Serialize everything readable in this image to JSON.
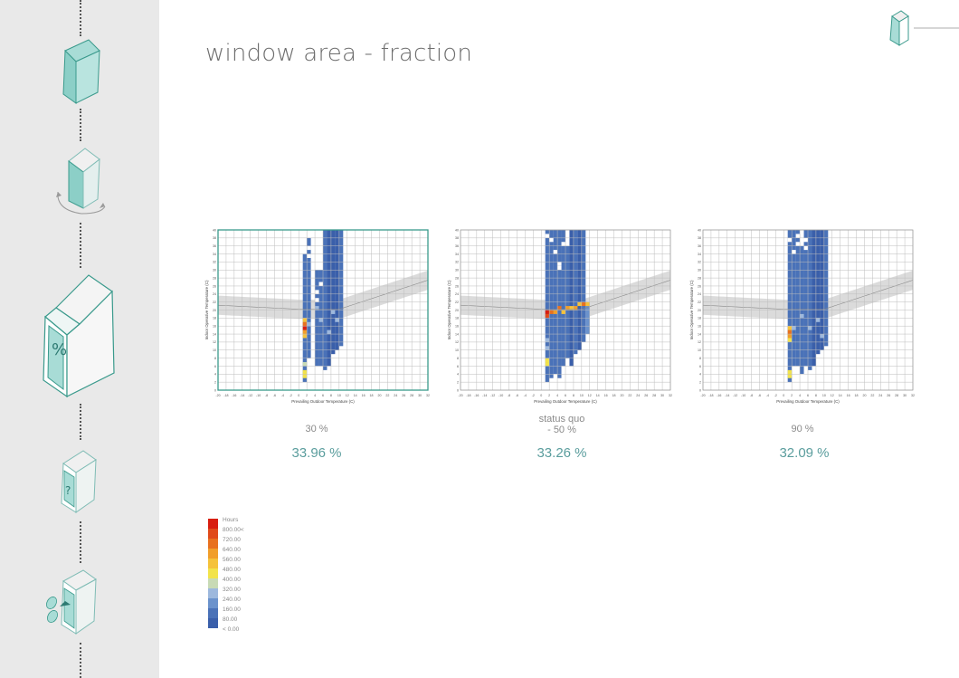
{
  "page": {
    "title": "window area - fraction"
  },
  "sidebar": {
    "icons": [
      {
        "name": "building-block-icon",
        "interactable": true
      },
      {
        "name": "building-rotate-icon",
        "interactable": true
      },
      {
        "name": "window-percent-icon",
        "label": "%",
        "interactable": true,
        "active": true
      },
      {
        "name": "window-question-icon",
        "label": "?",
        "interactable": true
      },
      {
        "name": "window-shading-icon",
        "interactable": true
      }
    ]
  },
  "header": {
    "corner_icon": "building-small-icon"
  },
  "colors": {
    "accent": "#5a9d9d",
    "frame_active": "#3a9a8c",
    "comfort_band": "#cfcfcf",
    "scale": [
      "#3a5faa",
      "#4a72b8",
      "#6b92cc",
      "#9db8dd",
      "#c8dab5",
      "#f2e34a",
      "#f5c23a",
      "#f19e2a",
      "#e8711f",
      "#e04a1a",
      "#d81e10"
    ]
  },
  "legend": {
    "title": "Hours",
    "labels": [
      "800.00<",
      "720.00",
      "640.00",
      "560.00",
      "480.00",
      "400.00",
      "320.00",
      "240.00",
      "160.00",
      "80.00",
      "< 0.00"
    ]
  },
  "chart_data": [
    {
      "type": "heatmap",
      "title": "",
      "xlabel": "Prevailing Outdoor Temperature (C)",
      "ylabel": "Indoor Operative Temperature (C)",
      "xlim": [
        -20,
        32
      ],
      "ylim": [
        0,
        40
      ],
      "x_ticks": [
        "-20",
        "-18",
        "-16",
        "-14",
        "-12",
        "-10",
        "-8",
        "-6",
        "-4",
        "-2",
        "0",
        "2",
        "4",
        "6",
        "8",
        "10",
        "12",
        "14",
        "16",
        "18",
        "20",
        "22",
        "24",
        "26",
        "28",
        "30",
        "32"
      ],
      "y_ticks": [
        "0",
        "2",
        "4",
        "6",
        "8",
        "10",
        "12",
        "14",
        "16",
        "18",
        "20",
        "22",
        "24",
        "26",
        "28",
        "30",
        "32",
        "34",
        "36",
        "38",
        "40"
      ],
      "caption": "30 %",
      "caption_prefix": "",
      "result": "33.96 %",
      "active": true,
      "columns": [
        {
          "x": 1.5,
          "y0": 2,
          "y1": 34,
          "level": 1
        },
        {
          "x": 2.5,
          "y0": 8,
          "y1": 38,
          "level": 1
        },
        {
          "x": 4.5,
          "y0": 6,
          "y1": 30,
          "level": 1
        },
        {
          "x": 5.5,
          "y0": 6,
          "y1": 30,
          "level": 1
        },
        {
          "x": 6.5,
          "y0": 5,
          "y1": 40,
          "level": 1
        },
        {
          "x": 7.5,
          "y0": 6,
          "y1": 40,
          "level": 0
        },
        {
          "x": 8.5,
          "y0": 9,
          "y1": 40,
          "level": 0
        },
        {
          "x": 9.5,
          "y0": 10,
          "y1": 40,
          "level": 0
        },
        {
          "x": 10.5,
          "y0": 11,
          "y1": 40,
          "level": 1
        }
      ],
      "hot_cells": [
        {
          "x": 1.5,
          "y": 15.5,
          "level": 10
        },
        {
          "x": 1.5,
          "y": 16.5,
          "level": 8
        },
        {
          "x": 1.5,
          "y": 17.5,
          "level": 6
        },
        {
          "x": 1.5,
          "y": 14.5,
          "level": 7
        },
        {
          "x": 1.5,
          "y": 13.5,
          "level": 6
        },
        {
          "x": 1.5,
          "y": 4.5,
          "level": 5
        },
        {
          "x": 1.5,
          "y": 3.5,
          "level": 5
        },
        {
          "x": 1.5,
          "y": 6.5,
          "level": 4
        },
        {
          "x": 2.5,
          "y": 16.5,
          "level": 3
        },
        {
          "x": 4.5,
          "y": 20.5,
          "level": 3
        },
        {
          "x": 5.5,
          "y": 17.5,
          "level": 3
        },
        {
          "x": 8.5,
          "y": 19.5,
          "level": 3
        },
        {
          "x": 9.5,
          "y": 17.5,
          "level": 3
        },
        {
          "x": 7.5,
          "y": 14.5,
          "level": 3
        }
      ],
      "blank_cells": [
        {
          "x": 2.5,
          "y": 35.5
        },
        {
          "x": 2.5,
          "y": 33.5
        },
        {
          "x": 4.5,
          "y": 24.5
        },
        {
          "x": 4.5,
          "y": 22.5
        },
        {
          "x": 5.5,
          "y": 26.5
        }
      ]
    },
    {
      "type": "heatmap",
      "title": "",
      "xlabel": "Prevailing Outdoor Temperature (C)",
      "ylabel": "Indoor Operative Temperature (C)",
      "xlim": [
        -20,
        32
      ],
      "ylim": [
        0,
        40
      ],
      "x_ticks": [
        "-20",
        "-18",
        "-16",
        "-14",
        "-12",
        "-10",
        "-8",
        "-6",
        "-4",
        "-2",
        "0",
        "2",
        "4",
        "6",
        "8",
        "10",
        "12",
        "14",
        "16",
        "18",
        "20",
        "22",
        "24",
        "26",
        "28",
        "30",
        "32"
      ],
      "y_ticks": [
        "0",
        "2",
        "4",
        "6",
        "8",
        "10",
        "12",
        "14",
        "16",
        "18",
        "20",
        "22",
        "24",
        "26",
        "28",
        "30",
        "32",
        "34",
        "36",
        "38",
        "40"
      ],
      "caption": "-  50 %",
      "caption_prefix": "status quo",
      "result": "33.26 %",
      "active": false,
      "columns": [
        {
          "x": 1.5,
          "y0": 2,
          "y1": 40,
          "level": 1
        },
        {
          "x": 2.5,
          "y0": 3,
          "y1": 40,
          "level": 1
        },
        {
          "x": 3.5,
          "y0": 4,
          "y1": 40,
          "level": 1
        },
        {
          "x": 4.5,
          "y0": 3,
          "y1": 40,
          "level": 1
        },
        {
          "x": 5.5,
          "y0": 6,
          "y1": 40,
          "level": 1
        },
        {
          "x": 6.5,
          "y0": 8,
          "y1": 36,
          "level": 1
        },
        {
          "x": 7.5,
          "y0": 6,
          "y1": 40,
          "level": 0
        },
        {
          "x": 8.5,
          "y0": 9,
          "y1": 40,
          "level": 1
        },
        {
          "x": 9.5,
          "y0": 10,
          "y1": 40,
          "level": 0
        },
        {
          "x": 10.5,
          "y0": 12,
          "y1": 40,
          "level": 1
        },
        {
          "x": 11.5,
          "y0": 14,
          "y1": 22,
          "level": 2
        }
      ],
      "hot_cells": [
        {
          "x": 1.5,
          "y": 19.5,
          "level": 10
        },
        {
          "x": 1.5,
          "y": 18.5,
          "level": 9
        },
        {
          "x": 2.5,
          "y": 19.5,
          "level": 8
        },
        {
          "x": 3.5,
          "y": 19.5,
          "level": 7
        },
        {
          "x": 4.5,
          "y": 20.5,
          "level": 8
        },
        {
          "x": 5.5,
          "y": 19.5,
          "level": 6
        },
        {
          "x": 6.5,
          "y": 20.5,
          "level": 7
        },
        {
          "x": 7.5,
          "y": 20.5,
          "level": 6
        },
        {
          "x": 8.5,
          "y": 20.5,
          "level": 7
        },
        {
          "x": 9.5,
          "y": 21.5,
          "level": 6
        },
        {
          "x": 10.5,
          "y": 21.5,
          "level": 8
        },
        {
          "x": 11.5,
          "y": 21.5,
          "level": 6
        },
        {
          "x": 1.5,
          "y": 7.5,
          "level": 5
        },
        {
          "x": 1.5,
          "y": 6.5,
          "level": 5
        },
        {
          "x": 1.5,
          "y": 10.5,
          "level": 3
        },
        {
          "x": 1.5,
          "y": 12.5,
          "level": 3
        }
      ],
      "blank_cells": [
        {
          "x": 1.5,
          "y": 38.5
        },
        {
          "x": 2.5,
          "y": 37.5
        },
        {
          "x": 4.5,
          "y": 31.5
        },
        {
          "x": 4.5,
          "y": 30.5
        },
        {
          "x": 3.5,
          "y": 34.5
        },
        {
          "x": 5.5,
          "y": 36.5
        }
      ]
    },
    {
      "type": "heatmap",
      "title": "",
      "xlabel": "Prevailing Outdoor Temperature (C)",
      "ylabel": "Indoor Operative Temperature (C)",
      "xlim": [
        -20,
        32
      ],
      "ylim": [
        0,
        40
      ],
      "x_ticks": [
        "-20",
        "-18",
        "-16",
        "-14",
        "-12",
        "-10",
        "-8",
        "-6",
        "-4",
        "-2",
        "0",
        "2",
        "4",
        "6",
        "8",
        "10",
        "12",
        "14",
        "16",
        "18",
        "20",
        "22",
        "24",
        "26",
        "28",
        "30",
        "32"
      ],
      "y_ticks": [
        "0",
        "2",
        "4",
        "6",
        "8",
        "10",
        "12",
        "14",
        "16",
        "18",
        "20",
        "22",
        "24",
        "26",
        "28",
        "30",
        "32",
        "34",
        "36",
        "38",
        "40"
      ],
      "caption": "90 %",
      "caption_prefix": "",
      "result": "32.09 %",
      "active": false,
      "columns": [
        {
          "x": 1.5,
          "y0": 2,
          "y1": 40,
          "level": 1
        },
        {
          "x": 2.5,
          "y0": 6,
          "y1": 40,
          "level": 1
        },
        {
          "x": 3.5,
          "y0": 6,
          "y1": 40,
          "level": 1
        },
        {
          "x": 4.5,
          "y0": 4,
          "y1": 36,
          "level": 1
        },
        {
          "x": 5.5,
          "y0": 6,
          "y1": 40,
          "level": 1
        },
        {
          "x": 6.5,
          "y0": 5,
          "y1": 40,
          "level": 1
        },
        {
          "x": 7.5,
          "y0": 6,
          "y1": 40,
          "level": 0
        },
        {
          "x": 8.5,
          "y0": 9,
          "y1": 40,
          "level": 0
        },
        {
          "x": 9.5,
          "y0": 10,
          "y1": 40,
          "level": 0
        },
        {
          "x": 10.5,
          "y0": 11,
          "y1": 40,
          "level": 1
        }
      ],
      "hot_cells": [
        {
          "x": 1.5,
          "y": 14.5,
          "level": 8
        },
        {
          "x": 1.5,
          "y": 13.5,
          "level": 7
        },
        {
          "x": 1.5,
          "y": 15.5,
          "level": 6
        },
        {
          "x": 1.5,
          "y": 12.5,
          "level": 5
        },
        {
          "x": 1.5,
          "y": 4.5,
          "level": 5
        },
        {
          "x": 1.5,
          "y": 3.5,
          "level": 5
        },
        {
          "x": 2.5,
          "y": 15.5,
          "level": 3
        },
        {
          "x": 4.5,
          "y": 18.5,
          "level": 3
        },
        {
          "x": 6.5,
          "y": 15.5,
          "level": 3
        },
        {
          "x": 8.5,
          "y": 17.5,
          "level": 3
        },
        {
          "x": 9.5,
          "y": 13.5,
          "level": 3
        }
      ],
      "blank_cells": [
        {
          "x": 1.5,
          "y": 37.5
        },
        {
          "x": 3.5,
          "y": 36.5
        },
        {
          "x": 3.5,
          "y": 38.5
        },
        {
          "x": 5.5,
          "y": 37.5
        },
        {
          "x": 5.5,
          "y": 35.5
        },
        {
          "x": 2.5,
          "y": 34.5
        }
      ]
    }
  ]
}
